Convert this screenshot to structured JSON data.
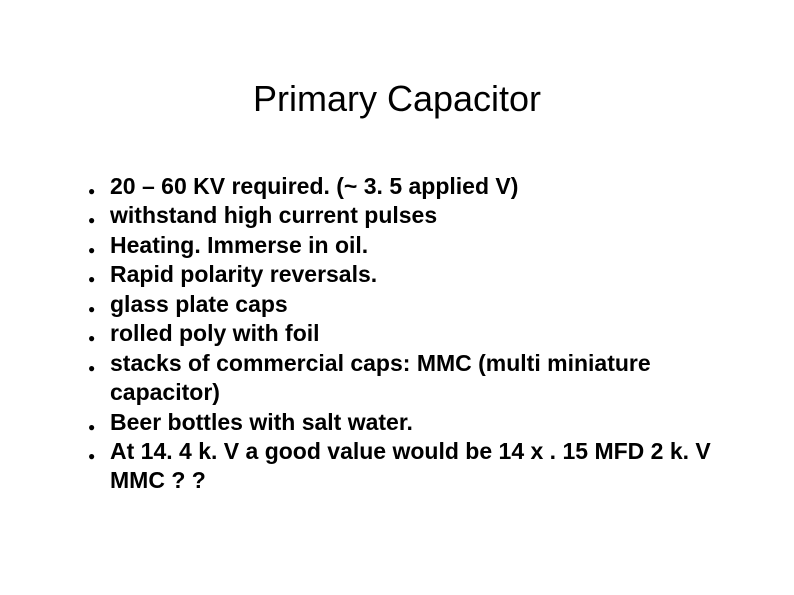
{
  "slide": {
    "title": "Primary Capacitor",
    "background_color": "#ffffff",
    "text_color": "#000000",
    "title_fontsize": 36,
    "title_weight": 400,
    "body_fontsize": 23,
    "body_weight": 700,
    "bullet_char": "●",
    "bullets": [
      "20 – 60 KV required. (~ 3. 5 applied V)",
      "withstand high current pulses",
      "Heating. Immerse in oil.",
      "Rapid polarity reversals.",
      "glass plate caps",
      "rolled poly with foil",
      "stacks of commercial caps: MMC (multi miniature capacitor)",
      "Beer bottles with salt water.",
      "At 14. 4 k. V a good value would be 14 x . 15 MFD 2 k. V MMC ? ?"
    ]
  }
}
